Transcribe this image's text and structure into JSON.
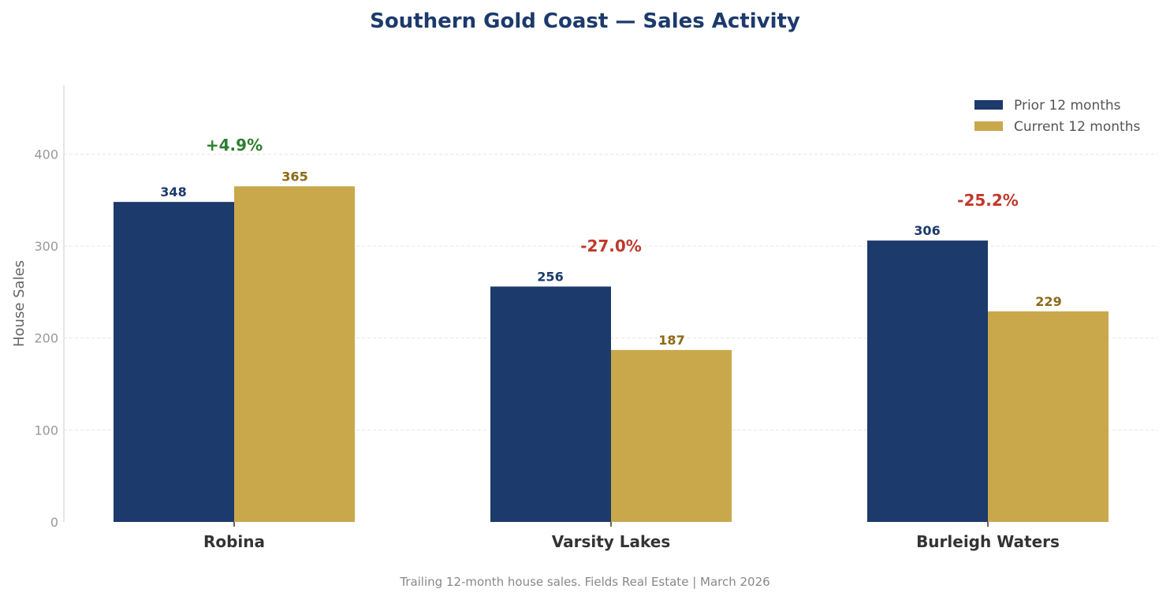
{
  "chart_data": {
    "type": "bar",
    "title": "Southern Gold Coast — Sales Activity",
    "ylabel": "House Sales",
    "xlabel": "",
    "ylim": [
      0,
      475
    ],
    "yticks": [
      0,
      100,
      200,
      300,
      400
    ],
    "grid": true,
    "legend_placement": "top-right",
    "categories": [
      "Robina",
      "Varsity Lakes",
      "Burleigh Waters"
    ],
    "series": [
      {
        "name": "Prior 12 months",
        "values": [
          348,
          256,
          306
        ],
        "color": "#1c3a6b",
        "label_color": "#1c3a6b"
      },
      {
        "name": "Current 12 months",
        "values": [
          365,
          187,
          229
        ],
        "color": "#c9a84c",
        "label_color": "#8a6a14"
      }
    ],
    "annotations": [
      {
        "text": "+4.9%",
        "color": "#2e7d32",
        "y": 410
      },
      {
        "text": "-27.0%",
        "color": "#c0392b",
        "y": 300
      },
      {
        "text": "-25.2%",
        "color": "#c0392b",
        "y": 350
      }
    ],
    "footnote": "Trailing 12-month house sales. Fields Real Estate | March 2026"
  }
}
